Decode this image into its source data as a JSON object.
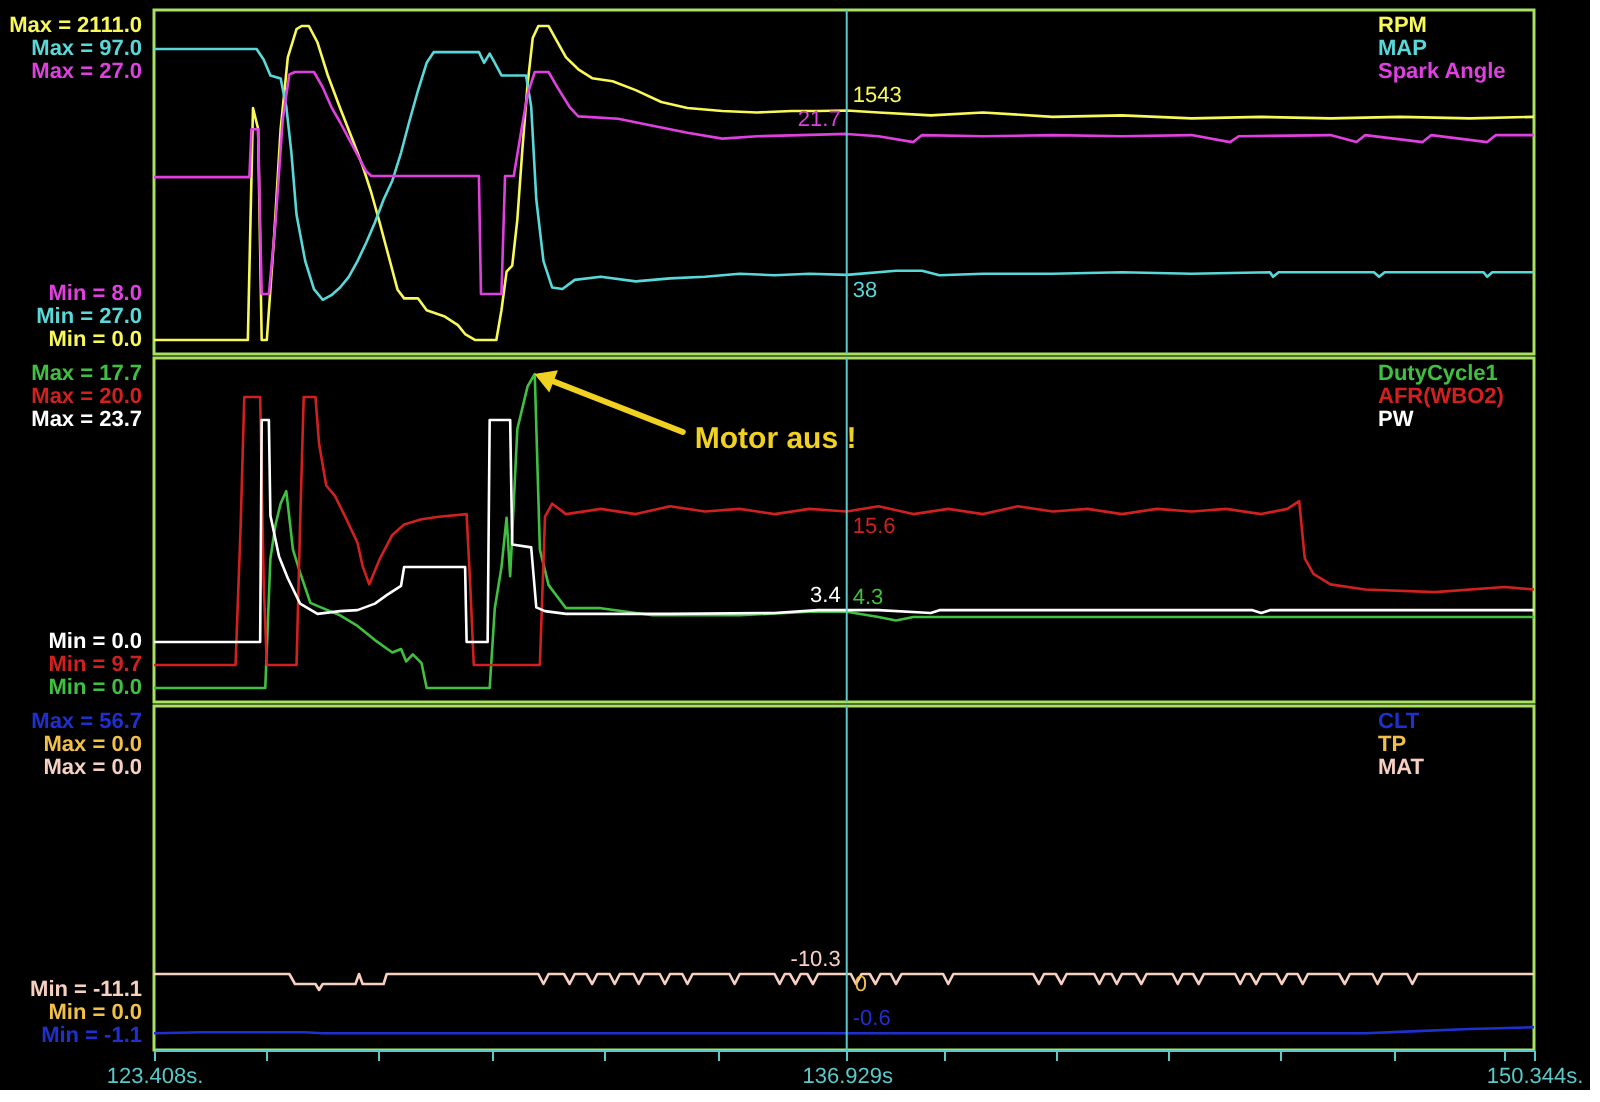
{
  "chart_data": [
    {
      "type": "line",
      "legend": "top right",
      "tick_labels": "y",
      "xlim": [
        123.408,
        150.344
      ],
      "ylim": [
        -94.1,
        2218.6
      ],
      "yticks": [
        {
          "value": 0.0,
          "label": "Min = 0.0"
        },
        {
          "value": 2111.0,
          "label": "Max = 2111.0"
        }
      ],
      "y2lim": [
        17.34,
        107.19
      ],
      "y2ticks": [
        {
          "value": 27.0,
          "label": "Min = 27.0"
        },
        {
          "value": 97.0,
          "label": "Max = 97.0"
        }
      ],
      "y3lim": [
        2.865,
        32.306
      ],
      "y3ticks": [
        {
          "value": 8.0,
          "label": "Min = 8.0"
        },
        {
          "value": 27.0,
          "label": "Max = 27.0"
        }
      ],
      "ref_lines": [
        {
          "axis": "x",
          "value": 136.929,
          "color": "#58c8c8"
        }
      ],
      "series": [
        {
          "name": "RPM",
          "color": "#f8f858",
          "axis": "y",
          "x": [
            123.41,
            125.24,
            125.34,
            125.44,
            125.51,
            125.61,
            125.75,
            125.88,
            126.02,
            126.19,
            126.29,
            126.43,
            126.6,
            126.8,
            127.04,
            127.28,
            127.48,
            127.65,
            127.82,
            127.99,
            128.16,
            128.29,
            128.56,
            128.73,
            129.07,
            129.34,
            129.48,
            129.68,
            130.09,
            130.19,
            130.29,
            130.4,
            130.5,
            130.6,
            130.7,
            130.8,
            130.91,
            131.11,
            131.24,
            131.45,
            131.69,
            131.96,
            132.36,
            132.81,
            133.31,
            133.82,
            134.5,
            135.18,
            135.86,
            136.37,
            136.929,
            137.55,
            138.57,
            139.59,
            140.95,
            142.3,
            143.66,
            145.02,
            146.37,
            147.73,
            149.09,
            150.34
          ],
          "values": [
            0,
            0,
            1560,
            1420,
            0,
            0,
            680,
            1420,
            1900,
            2090,
            2111,
            2111,
            2000,
            1780,
            1560,
            1350,
            1170,
            990,
            780,
            560,
            340,
            280,
            280,
            200,
            160,
            100,
            40,
            0,
            0,
            200,
            460,
            500,
            810,
            1290,
            1720,
            2030,
            2111,
            2111,
            2030,
            1900,
            1820,
            1760,
            1740,
            1680,
            1600,
            1560,
            1540,
            1530,
            1540,
            1540,
            1543,
            1530,
            1510,
            1530,
            1500,
            1510,
            1490,
            1500,
            1490,
            1500,
            1490,
            1500
          ],
          "value_labels": [
            null,
            null,
            null,
            null,
            null,
            null,
            null,
            null,
            null,
            null,
            null,
            null,
            null,
            null,
            null,
            null,
            null,
            null,
            null,
            null,
            null,
            null,
            null,
            null,
            null,
            null,
            null,
            null,
            null,
            null,
            null,
            null,
            null,
            null,
            null,
            null,
            null,
            null,
            null,
            null,
            null,
            null,
            null,
            null,
            null,
            null,
            null,
            null,
            null,
            null,
            "1543",
            null,
            null,
            null,
            null,
            null,
            null,
            null,
            null,
            null,
            null,
            null
          ]
        },
        {
          "name": "MAP",
          "color": "#58d8d8",
          "axis": "y2",
          "x": [
            123.41,
            125.41,
            125.55,
            125.68,
            125.88,
            125.99,
            126.09,
            126.19,
            126.36,
            126.53,
            126.7,
            126.87,
            127.04,
            127.21,
            127.38,
            127.55,
            127.72,
            127.89,
            128.06,
            128.23,
            128.39,
            128.56,
            128.73,
            128.87,
            129.75,
            129.85,
            129.96,
            130.06,
            130.19,
            130.67,
            130.77,
            130.87,
            131.01,
            131.18,
            131.38,
            131.62,
            132.13,
            132.81,
            133.48,
            134.16,
            134.84,
            135.52,
            136.2,
            136.929,
            137.89,
            138.4,
            138.74,
            139.59,
            140.95,
            142.3,
            143.66,
            145.19,
            145.25,
            145.36,
            147.22,
            147.32,
            147.43,
            149.36,
            149.43,
            149.53,
            150.34
          ],
          "values": [
            97.0,
            97.0,
            94.2,
            90.1,
            89.3,
            82.0,
            69.9,
            53.7,
            41.6,
            34.3,
            31.5,
            32.7,
            34.7,
            37.5,
            41.6,
            46.4,
            51.7,
            57.7,
            62.6,
            69.9,
            78.0,
            86.1,
            93.4,
            96.2,
            96.2,
            93.4,
            95.8,
            93.4,
            90.1,
            90.1,
            82.0,
            57.7,
            41.6,
            34.7,
            34.3,
            36.7,
            37.5,
            36.3,
            37.1,
            37.5,
            38.3,
            37.9,
            38.3,
            38,
            39.1,
            39.1,
            37.9,
            38.3,
            38.3,
            38.7,
            38.3,
            38.7,
            37.5,
            38.7,
            38.7,
            37.5,
            38.7,
            38.7,
            37.5,
            38.7,
            38.7
          ],
          "value_labels": [
            null,
            null,
            null,
            null,
            null,
            null,
            null,
            null,
            null,
            null,
            null,
            null,
            null,
            null,
            null,
            null,
            null,
            null,
            null,
            null,
            null,
            null,
            null,
            null,
            null,
            null,
            null,
            null,
            null,
            null,
            null,
            null,
            null,
            null,
            null,
            null,
            null,
            null,
            null,
            null,
            null,
            null,
            null,
            "38",
            null,
            null,
            null,
            null,
            null,
            null,
            null,
            null,
            null,
            null,
            null,
            null,
            null,
            null,
            null,
            null,
            null
          ]
        },
        {
          "name": "Spark Angle",
          "color": "#e040e0",
          "axis": "y3",
          "x": [
            123.41,
            125.27,
            125.31,
            125.44,
            125.51,
            125.65,
            125.78,
            125.92,
            126.05,
            126.16,
            126.53,
            126.7,
            126.87,
            127.04,
            127.21,
            127.38,
            127.55,
            127.65,
            129.75,
            129.79,
            130.19,
            130.26,
            130.43,
            130.57,
            130.7,
            130.84,
            131.11,
            131.28,
            131.52,
            131.69,
            132.47,
            133.14,
            133.82,
            134.5,
            135.18,
            136.03,
            136.929,
            137.55,
            138.23,
            138.4,
            139.59,
            140.95,
            142.3,
            143.66,
            144.41,
            144.58,
            146.37,
            146.88,
            147.05,
            148.17,
            148.34,
            149.43,
            149.6,
            150.34
          ],
          "values": [
            18.0,
            18.0,
            22.1,
            22.1,
            8.0,
            8.0,
            14.1,
            22.9,
            26.8,
            27.0,
            27.0,
            25.7,
            24.0,
            22.7,
            21.3,
            19.9,
            18.5,
            18.1,
            18.1,
            8.0,
            8.0,
            18.1,
            18.1,
            21.8,
            25.1,
            27.0,
            27.0,
            25.7,
            24.0,
            23.2,
            23.0,
            22.4,
            21.8,
            21.3,
            21.5,
            21.6,
            21.7,
            21.5,
            21.0,
            21.6,
            21.5,
            21.6,
            21.5,
            21.6,
            21.0,
            21.5,
            21.6,
            21.0,
            21.6,
            21.0,
            21.6,
            21.0,
            21.6,
            21.6
          ],
          "value_labels": [
            null,
            null,
            null,
            null,
            null,
            null,
            null,
            null,
            null,
            null,
            null,
            null,
            null,
            null,
            null,
            null,
            null,
            null,
            null,
            null,
            null,
            null,
            null,
            null,
            null,
            null,
            null,
            null,
            null,
            null,
            null,
            null,
            null,
            null,
            null,
            null,
            "21.7",
            null,
            null,
            null,
            null,
            null,
            null,
            null,
            null,
            null,
            null,
            null,
            null,
            null,
            null,
            null,
            null,
            null
          ]
        }
      ]
    },
    {
      "type": "line",
      "legend": "top right",
      "tick_labels": "y",
      "xlim": [
        123.408,
        150.344
      ],
      "ylim": [
        -0.789,
        18.602
      ],
      "yticks": [
        {
          "value": 0.0,
          "label": "Min = 0.0"
        },
        {
          "value": 17.7,
          "label": "Max = 17.7"
        }
      ],
      "y2lim": [
        8.278,
        21.499
      ],
      "y2ticks": [
        {
          "value": 9.7,
          "label": "Min = 9.7"
        },
        {
          "value": 20.0,
          "label": "Max = 20.0"
        }
      ],
      "y3lim": [
        -6.405,
        30.319
      ],
      "y3ticks": [
        {
          "value": 0.0,
          "label": "Min = 0.0"
        },
        {
          "value": 23.7,
          "label": "Max = 23.7"
        }
      ],
      "ref_lines": [
        {
          "axis": "x",
          "value": 136.929,
          "color": "#58c8c8"
        }
      ],
      "annotations": [
        {
          "text": "Motor aus !",
          "x": 130.84,
          "y": 17.7
        }
      ],
      "series": [
        {
          "name": "DutyCycle1",
          "color": "#40c040",
          "axis": "y",
          "x": [
            123.41,
            125.58,
            125.68,
            125.78,
            125.88,
            125.99,
            126.12,
            126.26,
            126.46,
            126.7,
            127.04,
            127.38,
            127.72,
            128.06,
            128.23,
            128.33,
            128.46,
            128.63,
            128.73,
            129.96,
            130.06,
            130.19,
            130.29,
            130.36,
            130.5,
            130.7,
            130.84,
            130.94,
            131.11,
            131.45,
            132.13,
            133.14,
            134.84,
            136.2,
            136.929,
            137.55,
            137.89,
            138.23,
            140.27,
            143.66,
            147.05,
            150.34
          ],
          "values": [
            0.0,
            0.0,
            7.3,
            9.2,
            10.4,
            11.1,
            7.8,
            6.5,
            4.8,
            4.5,
            4.1,
            3.5,
            2.7,
            2.0,
            2.2,
            1.5,
            1.9,
            1.4,
            0.0,
            0.0,
            4.5,
            6.8,
            9.6,
            6.3,
            14.6,
            17.0,
            17.7,
            7.8,
            5.8,
            4.5,
            4.5,
            4.1,
            4.1,
            4.3,
            4.3,
            4.0,
            3.8,
            4.0,
            4.0,
            4.0,
            4.0,
            4.0
          ],
          "value_labels": [
            null,
            null,
            null,
            null,
            null,
            null,
            null,
            null,
            null,
            null,
            null,
            null,
            null,
            null,
            null,
            null,
            null,
            null,
            null,
            null,
            null,
            null,
            null,
            null,
            null,
            null,
            null,
            null,
            null,
            null,
            null,
            null,
            null,
            null,
            "4.3",
            null,
            null,
            null,
            null,
            null,
            null,
            null
          ]
        },
        {
          "name": "AFR(WBO2)",
          "color": "#d02020",
          "axis": "y2",
          "x": [
            123.41,
            125.0,
            125.1,
            125.17,
            125.48,
            125.55,
            125.61,
            126.19,
            126.26,
            126.33,
            126.56,
            126.63,
            126.77,
            126.94,
            127.14,
            127.38,
            127.48,
            127.61,
            127.82,
            128.06,
            128.29,
            128.63,
            128.97,
            129.51,
            129.58,
            129.65,
            130.94,
            131.04,
            131.18,
            131.45,
            132.13,
            132.81,
            133.48,
            134.16,
            134.84,
            135.52,
            136.2,
            136.929,
            137.55,
            138.23,
            138.91,
            139.59,
            140.27,
            140.95,
            141.63,
            142.3,
            142.98,
            143.66,
            144.34,
            145.02,
            145.53,
            145.76,
            145.87,
            146.04,
            146.37,
            147.05,
            148.41,
            149.77,
            150.34
          ],
          "values": [
            9.7,
            9.7,
            15.1,
            20.0,
            20.0,
            12.8,
            9.7,
            9.7,
            15.1,
            20.0,
            20.0,
            18.2,
            16.6,
            16.2,
            15.4,
            14.4,
            13.5,
            12.8,
            13.8,
            14.7,
            15.1,
            15.3,
            15.4,
            15.5,
            12.8,
            9.7,
            9.7,
            15.4,
            15.9,
            15.5,
            15.7,
            15.5,
            15.8,
            15.6,
            15.7,
            15.5,
            15.7,
            15.6,
            15.8,
            15.5,
            15.7,
            15.5,
            15.8,
            15.6,
            15.7,
            15.5,
            15.7,
            15.6,
            15.7,
            15.5,
            15.7,
            16.0,
            13.8,
            13.2,
            12.8,
            12.6,
            12.5,
            12.7,
            12.6
          ],
          "value_labels": [
            null,
            null,
            null,
            null,
            null,
            null,
            null,
            null,
            null,
            null,
            null,
            null,
            null,
            null,
            null,
            null,
            null,
            null,
            null,
            null,
            null,
            null,
            null,
            null,
            null,
            null,
            null,
            null,
            null,
            null,
            null,
            null,
            null,
            null,
            null,
            null,
            null,
            "15.6",
            null,
            null,
            null,
            null,
            null,
            null,
            null,
            null,
            null,
            null,
            null,
            null,
            null,
            null,
            null,
            null,
            null,
            null,
            null,
            null,
            null
          ]
        },
        {
          "name": "PW",
          "color": "#ffffff",
          "axis": "y3",
          "x": [
            123.41,
            125.48,
            125.51,
            125.65,
            125.68,
            125.85,
            126.02,
            126.26,
            126.6,
            127.04,
            127.38,
            127.72,
            127.95,
            128.23,
            128.29,
            129.48,
            129.51,
            129.92,
            129.96,
            130.36,
            130.4,
            130.77,
            130.87,
            131.04,
            131.45,
            133.48,
            135.52,
            136.37,
            136.929,
            137.55,
            138.57,
            138.74,
            140.27,
            144.85,
            145.02,
            145.19,
            150.34
          ],
          "values": [
            0.0,
            0.0,
            23.7,
            23.7,
            13.5,
            9.1,
            6.8,
            4.1,
            3.0,
            3.3,
            3.4,
            4.1,
            5.0,
            6.0,
            8.0,
            8.0,
            0.0,
            0.0,
            23.7,
            23.7,
            10.4,
            10.1,
            3.7,
            3.3,
            3.0,
            3.0,
            3.1,
            3.4,
            3.4,
            3.4,
            3.1,
            3.4,
            3.4,
            3.4,
            3.1,
            3.4,
            3.4
          ],
          "value_labels": [
            null,
            null,
            null,
            null,
            null,
            null,
            null,
            null,
            null,
            null,
            null,
            null,
            null,
            null,
            null,
            null,
            null,
            null,
            null,
            null,
            null,
            null,
            null,
            null,
            null,
            null,
            null,
            null,
            "3.4",
            null,
            null,
            null,
            null,
            null,
            null,
            null,
            null
          ]
        }
      ]
    },
    {
      "type": "line",
      "legend": "top right",
      "xlim": [
        123.408,
        150.344
      ],
      "xticks": [
        {
          "value": 123.408,
          "label": "123.408s."
        },
        {
          "value": 125.58,
          "label": null
        },
        {
          "value": 127.78,
          "label": null
        },
        {
          "value": 129.99,
          "label": null
        },
        {
          "value": 132.19,
          "label": null
        },
        {
          "value": 134.4,
          "label": null
        },
        {
          "value": 136.929,
          "label": "136.929s"
        },
        {
          "value": 138.81,
          "label": null
        },
        {
          "value": 141.01,
          "label": null
        },
        {
          "value": 143.19,
          "label": null
        },
        {
          "value": 145.39,
          "label": null
        },
        {
          "value": 147.6,
          "label": null
        },
        {
          "value": 149.77,
          "label": null
        },
        {
          "value": 150.344,
          "label": "150.344s."
        }
      ],
      "ylim": [
        -3.677,
        59.645
      ],
      "yticks": [
        {
          "value": -1.1,
          "label": "Min = -1.1"
        },
        {
          "value": 56.7,
          "label": "Max = 56.7"
        }
      ],
      "y2lim": [
        -14.1,
        3.1
      ],
      "y2ticks": [
        {
          "value": -11.1,
          "label": "Min = -11.1"
        },
        {
          "value": 0.0,
          "label": "Max = 0.0"
        }
      ],
      "ref_lines": [
        {
          "axis": "x",
          "value": 136.929,
          "color": "#58c8c8"
        }
      ],
      "annotations": [
        "Max = 0.0",
        "Min = 0.0",
        "0"
      ],
      "series": [
        {
          "name": "CLT",
          "color": "#2030d0",
          "axis": "y",
          "x": [
            123.41,
            124.32,
            126.36,
            126.7,
            136.929,
            147.05,
            148.07,
            149.09,
            150.34
          ],
          "values": [
            -0.6,
            -0.4,
            -0.4,
            -0.6,
            -0.6,
            -0.6,
            -0.2,
            0.2,
            0.5
          ],
          "value_labels": [
            null,
            null,
            null,
            null,
            "-0.6",
            null,
            null,
            null,
            null
          ]
        },
        {
          "name": "TP",
          "color": "#f0c048"
        },
        {
          "name": "MAT",
          "color": "#f8d0c0",
          "axis": "y2",
          "x": [
            123.41,
            126.05,
            126.16,
            126.56,
            126.63,
            126.7,
            127.34,
            127.41,
            127.48,
            127.89,
            127.95,
            130.91,
            131.01,
            131.11,
            131.41,
            131.52,
            131.62,
            131.85,
            131.96,
            132.06,
            132.3,
            132.4,
            132.5,
            132.77,
            132.87,
            132.97,
            133.28,
            133.38,
            133.48,
            133.72,
            133.82,
            133.92,
            134.64,
            134.74,
            134.84,
            135.52,
            135.62,
            135.72,
            135.82,
            135.93,
            136.03,
            136.16,
            136.27,
            136.37,
            136.929,
            137.01,
            137.11,
            137.22,
            137.38,
            137.49,
            137.59,
            137.79,
            137.89,
            138.0,
            138.81,
            138.91,
            139.01,
            140.57,
            140.68,
            140.78,
            141.01,
            141.12,
            141.22,
            141.76,
            141.86,
            141.96,
            142.1,
            142.2,
            142.3,
            142.57,
            142.68,
            142.78,
            143.29,
            143.39,
            143.49,
            143.69,
            143.8,
            143.9,
            144.51,
            144.61,
            144.71,
            144.81,
            144.92,
            145.02,
            145.32,
            145.42,
            145.53,
            145.73,
            145.83,
            145.93,
            146.54,
            146.65,
            146.75,
            147.19,
            147.29,
            147.39,
            147.87,
            147.97,
            148.07,
            150.34
          ],
          "values": [
            -10.3,
            -10.3,
            -10.8,
            -10.8,
            -11.1,
            -10.8,
            -10.8,
            -10.3,
            -10.8,
            -10.8,
            -10.3,
            -10.3,
            -10.8,
            -10.3,
            -10.3,
            -10.8,
            -10.3,
            -10.3,
            -10.8,
            -10.3,
            -10.3,
            -10.8,
            -10.3,
            -10.3,
            -10.8,
            -10.3,
            -10.3,
            -10.8,
            -10.3,
            -10.3,
            -10.8,
            -10.3,
            -10.3,
            -10.8,
            -10.3,
            -10.3,
            -10.8,
            -10.3,
            -10.3,
            -10.8,
            -10.3,
            -10.3,
            -10.8,
            -10.3,
            -10.3,
            -10.3,
            -10.8,
            -10.3,
            -10.3,
            -10.8,
            -10.3,
            -10.3,
            -10.8,
            -10.3,
            -10.3,
            -10.8,
            -10.3,
            -10.3,
            -10.8,
            -10.3,
            -10.3,
            -10.8,
            -10.3,
            -10.3,
            -10.8,
            -10.3,
            -10.3,
            -10.8,
            -10.3,
            -10.3,
            -10.8,
            -10.3,
            -10.3,
            -10.8,
            -10.3,
            -10.3,
            -10.8,
            -10.3,
            -10.3,
            -10.8,
            -10.3,
            -10.3,
            -10.8,
            -10.3,
            -10.3,
            -10.8,
            -10.3,
            -10.3,
            -10.8,
            -10.3,
            -10.3,
            -10.8,
            -10.3,
            -10.3,
            -10.8,
            -10.3,
            -10.3,
            -10.8,
            -10.3,
            -10.3
          ],
          "value_labels": [
            null,
            null,
            null,
            null,
            null,
            null,
            null,
            null,
            null,
            null,
            null,
            null,
            null,
            null,
            null,
            null,
            null,
            null,
            null,
            null,
            null,
            null,
            null,
            null,
            null,
            null,
            null,
            null,
            null,
            null,
            null,
            null,
            null,
            null,
            null,
            null,
            null,
            null,
            null,
            null,
            null,
            null,
            null,
            null,
            "-10.3",
            null,
            null,
            null,
            null,
            null,
            null,
            null,
            null,
            null,
            null,
            null,
            null,
            null,
            null,
            null,
            null,
            null,
            null,
            null,
            null,
            null,
            null,
            null,
            null,
            null,
            null,
            null,
            null,
            null,
            null,
            null,
            null,
            null,
            null,
            null,
            null,
            null,
            null,
            null,
            null,
            null,
            null,
            null,
            null,
            null,
            null,
            null,
            null,
            null,
            null,
            null,
            null,
            null,
            null,
            null
          ]
        }
      ]
    }
  ]
}
